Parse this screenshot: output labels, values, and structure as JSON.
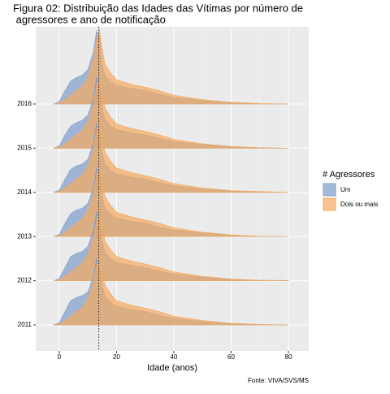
{
  "chart_data": {
    "type": "ridgeline",
    "title": [
      "Figura 02: Distribuição das Idades das Vítimas por número de",
      " agressores e ano de notificação"
    ],
    "x_label": "Idade (anos)",
    "caption": "Fonte: VIVA/SVS/MS",
    "legend_title": "# Agressores",
    "categories": [
      "2011",
      "2012",
      "2013",
      "2014",
      "2015",
      "2016"
    ],
    "x": [
      -2,
      0,
      2,
      4,
      6,
      8,
      10,
      12,
      13,
      14,
      15,
      16,
      18,
      20,
      25,
      30,
      35,
      40,
      50,
      60,
      70,
      80
    ],
    "xlim": [
      -8.2,
      87.1
    ],
    "xticks": [
      0,
      20,
      40,
      60,
      80
    ],
    "vline": 13.8,
    "grid": true,
    "series": [
      {
        "name": "Um",
        "color": "#7f9ccc",
        "values": [
          [
            0,
            0.05,
            0.3,
            0.55,
            0.62,
            0.66,
            0.75,
            1.1,
            1.5,
            1.35,
            0.9,
            0.65,
            0.5,
            0.42,
            0.35,
            0.3,
            0.22,
            0.15,
            0.08,
            0.03,
            0.01,
            0
          ],
          [
            0,
            0.05,
            0.3,
            0.55,
            0.62,
            0.66,
            0.78,
            1.15,
            1.55,
            1.4,
            0.9,
            0.65,
            0.5,
            0.42,
            0.35,
            0.3,
            0.22,
            0.15,
            0.08,
            0.03,
            0.01,
            0.005
          ],
          [
            0,
            0.05,
            0.3,
            0.52,
            0.6,
            0.64,
            0.75,
            1.1,
            1.55,
            1.4,
            0.9,
            0.65,
            0.5,
            0.42,
            0.35,
            0.3,
            0.22,
            0.15,
            0.08,
            0.03,
            0.005,
            0
          ],
          [
            0,
            0.05,
            0.3,
            0.52,
            0.6,
            0.64,
            0.75,
            1.12,
            1.55,
            1.4,
            0.9,
            0.65,
            0.5,
            0.42,
            0.35,
            0.3,
            0.22,
            0.15,
            0.08,
            0.03,
            0.01,
            0
          ],
          [
            0,
            0.05,
            0.3,
            0.5,
            0.58,
            0.63,
            0.75,
            1.12,
            1.6,
            1.45,
            0.9,
            0.65,
            0.5,
            0.42,
            0.35,
            0.3,
            0.22,
            0.15,
            0.08,
            0.03,
            0.01,
            0
          ],
          [
            0,
            0.05,
            0.3,
            0.52,
            0.6,
            0.65,
            0.78,
            1.2,
            1.65,
            1.5,
            0.9,
            0.65,
            0.5,
            0.42,
            0.35,
            0.3,
            0.22,
            0.15,
            0.08,
            0.03,
            0,
            0
          ]
        ]
      },
      {
        "name": "Dois ou mais",
        "color": "#f5a95e",
        "values": [
          [
            0,
            0.02,
            0.1,
            0.2,
            0.3,
            0.4,
            0.6,
            1.0,
            1.35,
            1.5,
            1.15,
            0.9,
            0.7,
            0.55,
            0.45,
            0.38,
            0.3,
            0.2,
            0.1,
            0.04,
            0.01,
            0
          ],
          [
            0,
            0.02,
            0.1,
            0.2,
            0.3,
            0.4,
            0.6,
            1.0,
            1.35,
            1.55,
            1.2,
            0.9,
            0.7,
            0.55,
            0.45,
            0.38,
            0.3,
            0.2,
            0.1,
            0.04,
            0.01,
            0
          ],
          [
            0,
            0.02,
            0.1,
            0.2,
            0.3,
            0.4,
            0.6,
            1.0,
            1.4,
            1.55,
            1.2,
            0.9,
            0.7,
            0.55,
            0.45,
            0.38,
            0.3,
            0.2,
            0.1,
            0.04,
            0.005,
            0
          ],
          [
            0,
            0.02,
            0.1,
            0.2,
            0.3,
            0.4,
            0.6,
            1.0,
            1.4,
            1.6,
            1.2,
            0.9,
            0.7,
            0.55,
            0.45,
            0.38,
            0.3,
            0.2,
            0.1,
            0.04,
            0.02,
            0
          ],
          [
            0,
            0.02,
            0.1,
            0.2,
            0.3,
            0.4,
            0.6,
            1.0,
            1.4,
            1.6,
            1.2,
            0.9,
            0.7,
            0.55,
            0.45,
            0.38,
            0.3,
            0.2,
            0.1,
            0.04,
            0.01,
            0
          ],
          [
            0,
            0.02,
            0.1,
            0.2,
            0.3,
            0.4,
            0.6,
            1.05,
            1.45,
            1.7,
            1.25,
            0.9,
            0.7,
            0.55,
            0.45,
            0.38,
            0.3,
            0.2,
            0.1,
            0.04,
            0.01,
            0
          ]
        ]
      }
    ]
  }
}
